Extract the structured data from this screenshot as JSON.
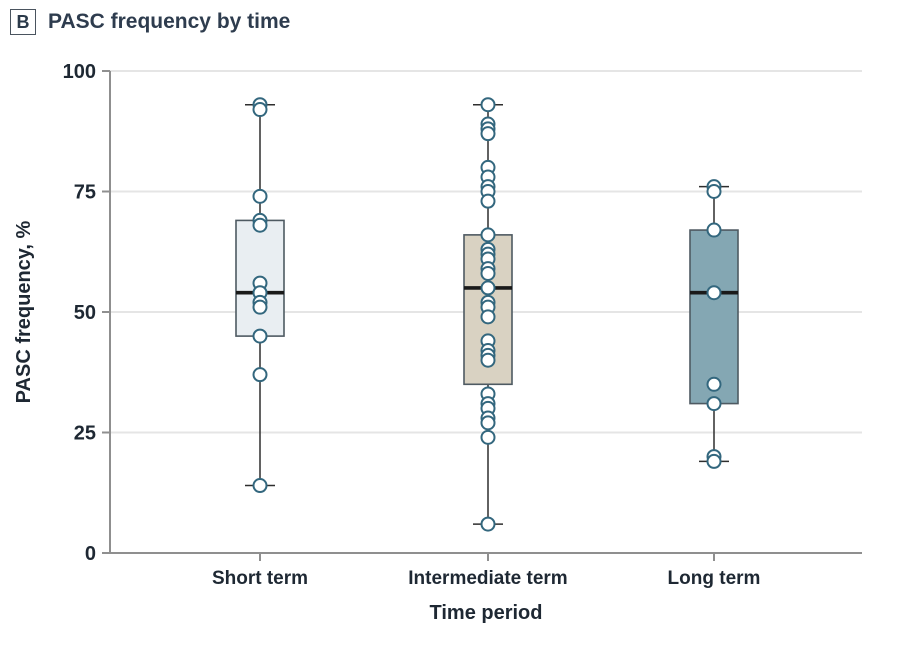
{
  "panel": {
    "label": "B",
    "title": "PASC frequency by time"
  },
  "chart_data": {
    "type": "box",
    "title": "PASC frequency by time",
    "xlabel": "Time period",
    "ylabel": "PASC frequency, %",
    "ylim": [
      0,
      100
    ],
    "yticks": [
      0,
      25,
      50,
      75,
      100
    ],
    "gridlines": [
      25,
      50,
      75,
      100
    ],
    "grid_on": true,
    "legend": "none",
    "categories": [
      "Short term",
      "Intermediate term",
      "Long term"
    ],
    "series": [
      {
        "name": "Short term",
        "box": {
          "q1": 45,
          "median": 54,
          "q3": 69,
          "whisker_low": 14,
          "whisker_high": 93
        },
        "points": [
          93,
          92,
          74,
          69,
          68,
          56,
          54,
          52,
          51,
          45,
          37,
          14
        ],
        "fill": "#e9eef2"
      },
      {
        "name": "Intermediate term",
        "box": {
          "q1": 35,
          "median": 55,
          "q3": 66,
          "whisker_low": 6,
          "whisker_high": 93
        },
        "points": [
          93,
          89,
          88,
          87,
          80,
          78,
          76,
          75,
          73,
          66,
          63,
          62,
          61,
          59,
          58,
          55,
          52,
          51,
          49,
          44,
          42,
          41,
          40,
          33,
          31,
          30,
          28,
          27,
          24,
          6
        ],
        "fill": "#d9d2c2"
      },
      {
        "name": "Long term",
        "box": {
          "q1": 31,
          "median": 54,
          "q3": 67,
          "whisker_low": 19,
          "whisker_high": 76
        },
        "points": [
          76,
          75,
          67,
          54,
          35,
          31,
          20,
          19
        ],
        "fill": "#84a7b3"
      }
    ],
    "colors": {
      "marker_stroke": "#33677e",
      "marker_fill": "#ffffff",
      "median": "#1a1a1a",
      "box_border": "#4e5a62",
      "whisker": "#2e2e2e",
      "axis": "#8f8f8f",
      "grid": "#e5e5e5",
      "text": "#1e2833"
    }
  }
}
